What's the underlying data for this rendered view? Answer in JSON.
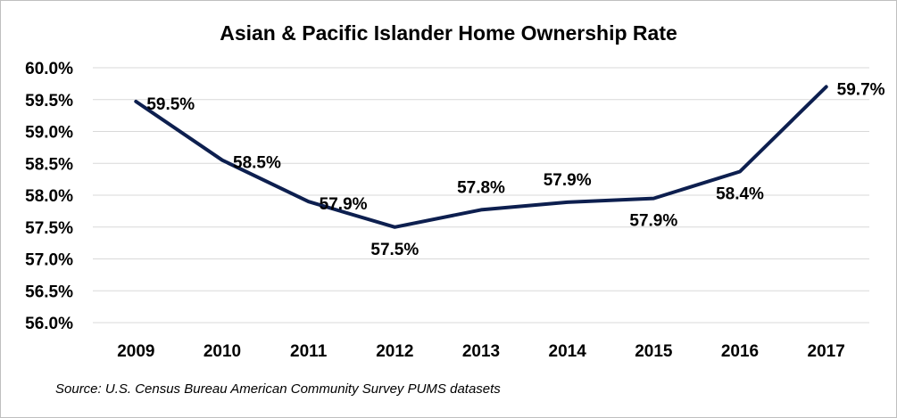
{
  "chart_data": {
    "type": "line",
    "title": "Asian & Pacific Islander Home Ownership Rate",
    "categories": [
      "2009",
      "2010",
      "2011",
      "2012",
      "2013",
      "2014",
      "2015",
      "2016",
      "2017"
    ],
    "series": [
      {
        "values": [
          59.47,
          58.55,
          57.9,
          57.5,
          57.77,
          57.89,
          57.95,
          58.37,
          59.7
        ],
        "labels": [
          "59.5%",
          "58.5%",
          "57.9%",
          "57.5%",
          "57.8%",
          "57.9%",
          "57.9%",
          "58.4%",
          "59.7%"
        ],
        "label_positions": [
          "right",
          "right",
          "right",
          "below",
          "above",
          "above",
          "below",
          "below",
          "right"
        ]
      }
    ],
    "y_ticks": [
      "56.0%",
      "56.5%",
      "57.0%",
      "57.5%",
      "58.0%",
      "58.5%",
      "59.0%",
      "59.5%",
      "60.0%"
    ],
    "ylim": [
      56,
      60
    ],
    "y_step": 0.5,
    "grid": true,
    "legend": "none",
    "line_color": "#0d1f4f",
    "grid_color": "#d9d9d9"
  },
  "source": "Source: U.S. Census Bureau American Community Survey PUMS datasets"
}
